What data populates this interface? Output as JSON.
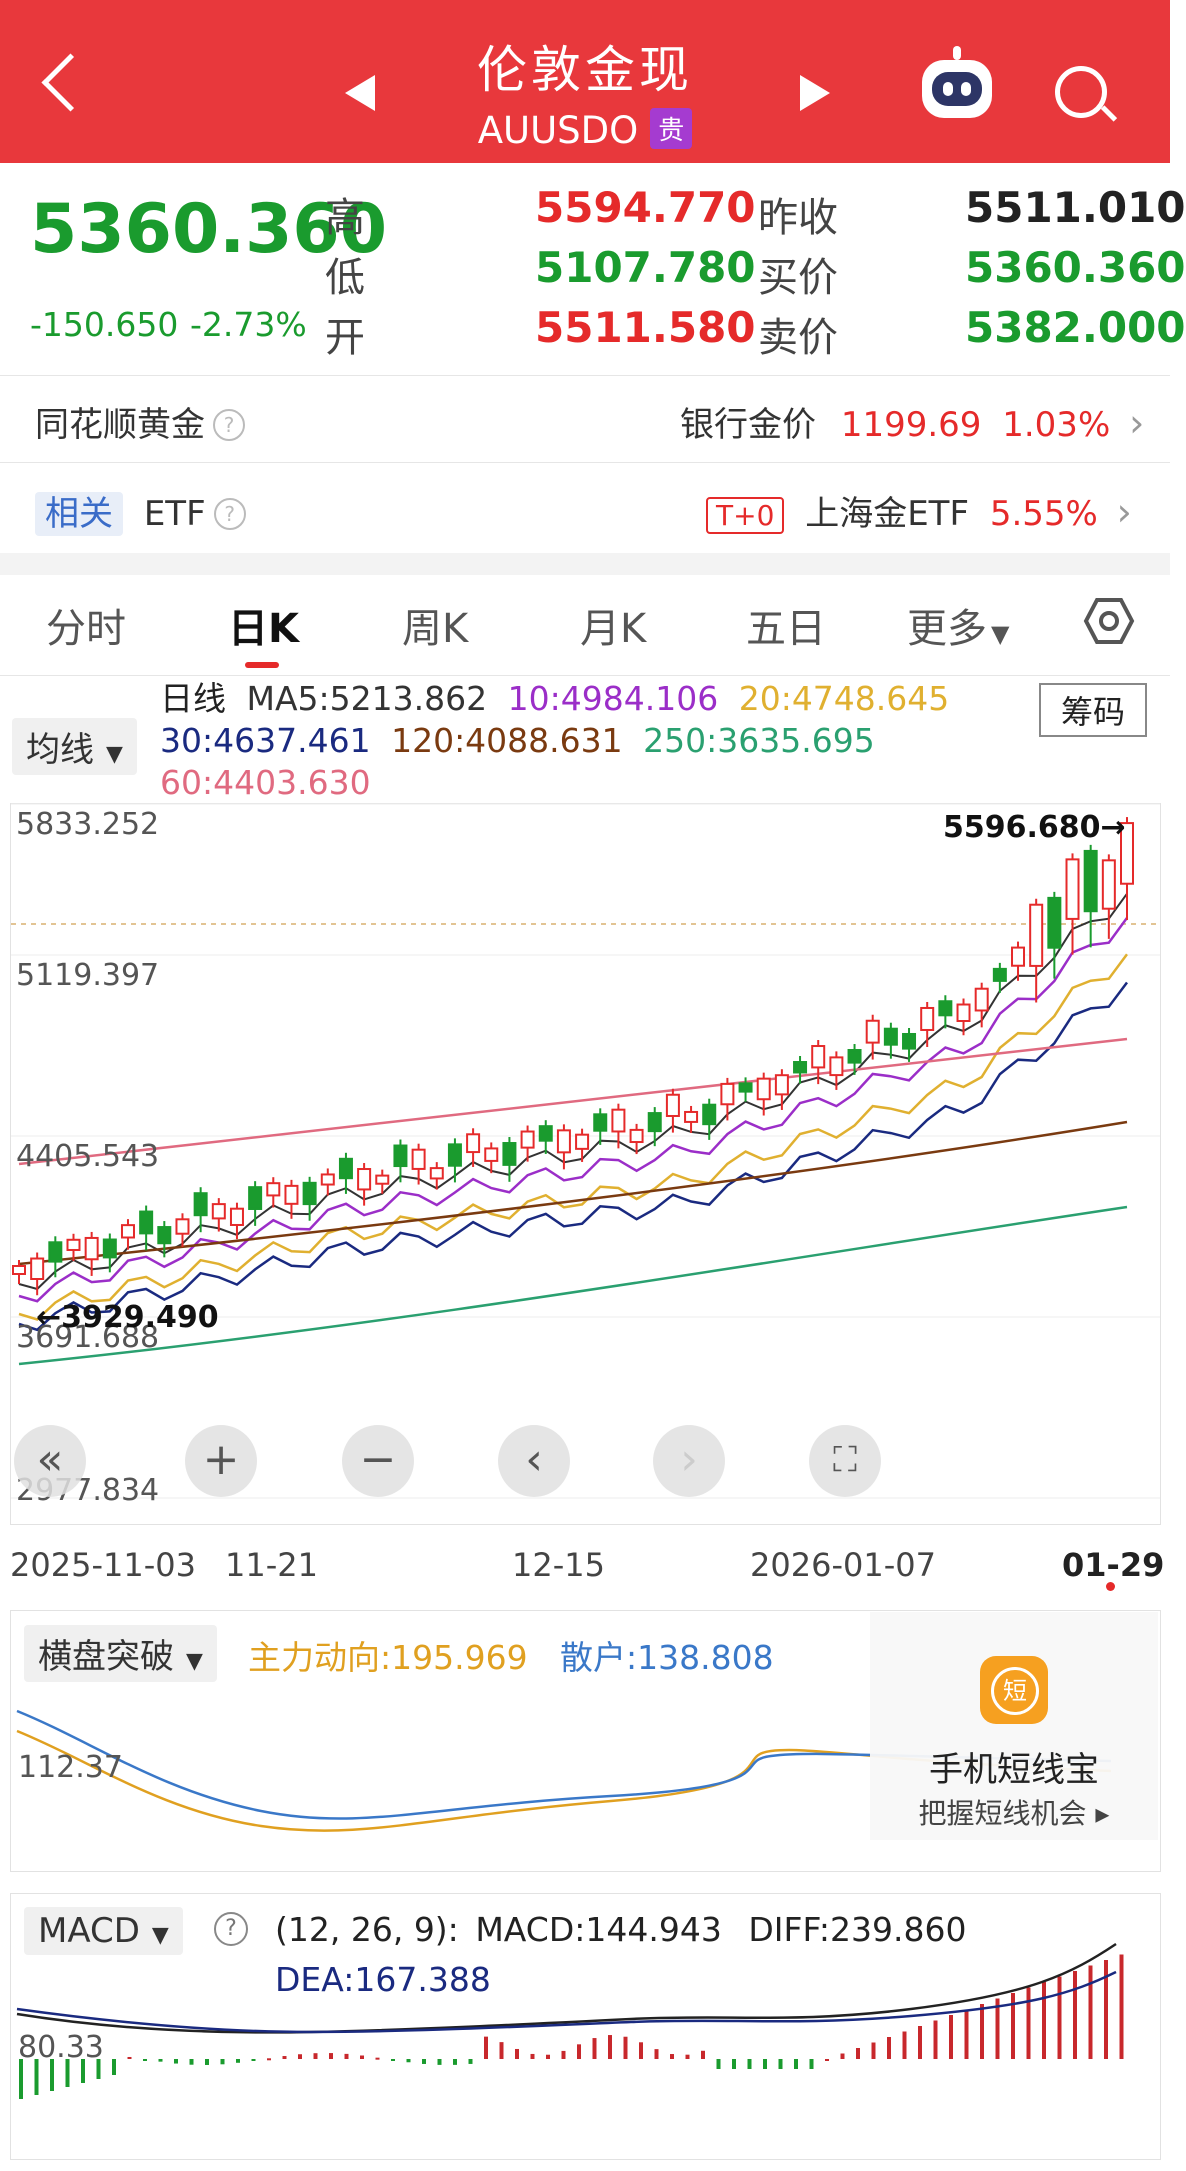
{
  "header": {
    "title": "伦敦金现",
    "symbol": "AUUSDO",
    "badge": "贵"
  },
  "quote": {
    "price": "5360.360",
    "change": "-150.650",
    "change_pct": "-2.73%",
    "high_label": "高",
    "high": "5594.770",
    "low_label": "低",
    "low": "5107.780",
    "open_label": "开",
    "open": "5511.580",
    "prev_close_label": "昨收",
    "prev_close": "5511.010",
    "bid_label": "买价",
    "bid": "5360.360",
    "ask_label": "卖价",
    "ask": "5382.000"
  },
  "row_gold": {
    "left_label": "同花顺黄金",
    "right_label": "银行金价",
    "price": "1199.69",
    "pct": "1.03%"
  },
  "row_etf": {
    "tag": "相关",
    "label": "ETF",
    "t0": "T+0",
    "etf_name": "上海金ETF",
    "pct": "5.55%"
  },
  "tabs": [
    "分时",
    "日K",
    "周K",
    "月K",
    "五日",
    "更多"
  ],
  "active_tab": "日K",
  "kline": {
    "ma_selector": "均线",
    "chouma": "筹码",
    "ma": {
      "line_label": "日线",
      "ma5": "MA5:5213.862",
      "ma10": "10:4984.106",
      "ma20": "20:4748.645",
      "ma30": "30:4637.461",
      "ma120": "120:4088.631",
      "ma250": "250:3635.695",
      "ma60": "60:4403.630"
    },
    "y_labels": [
      "5833.252",
      "5119.397",
      "4405.543",
      "3691.688",
      "2977.834"
    ],
    "max_label": "5596.680→",
    "min_label": "←3929.490",
    "x_labels": [
      "2025-11-03",
      "11-21",
      "12-15",
      "2026-01-07",
      "01-29"
    ],
    "ctrl_icons": [
      "double-left-icon",
      "zoom-in-icon",
      "zoom-out-icon",
      "chevron-left-icon",
      "chevron-right-icon",
      "fullscreen-icon"
    ]
  },
  "flow": {
    "selector": "横盘突破",
    "main_label": "主力动向:195.969",
    "retail_label": "散户:138.808",
    "y_label": "112.37",
    "promo_title": "手机短线宝",
    "promo_sub": "把握短线机会",
    "promo_icon": "短"
  },
  "macd": {
    "selector": "MACD",
    "params": "(12, 26, 9):",
    "macd": "MACD:144.943",
    "diff": "DIFF:239.860",
    "dea": "DEA:167.388",
    "y_label": "80.33"
  },
  "colors": {
    "header_bg": "#e8383c",
    "up": "#e52a2a",
    "down": "#1a9b2e",
    "ma5": "#333333",
    "ma10": "#9b2ec8",
    "ma20": "#e0b030",
    "ma30": "#1a2a80",
    "ma60": "#e06a80",
    "ma120": "#7a3a10",
    "ma250": "#2aa070"
  }
}
